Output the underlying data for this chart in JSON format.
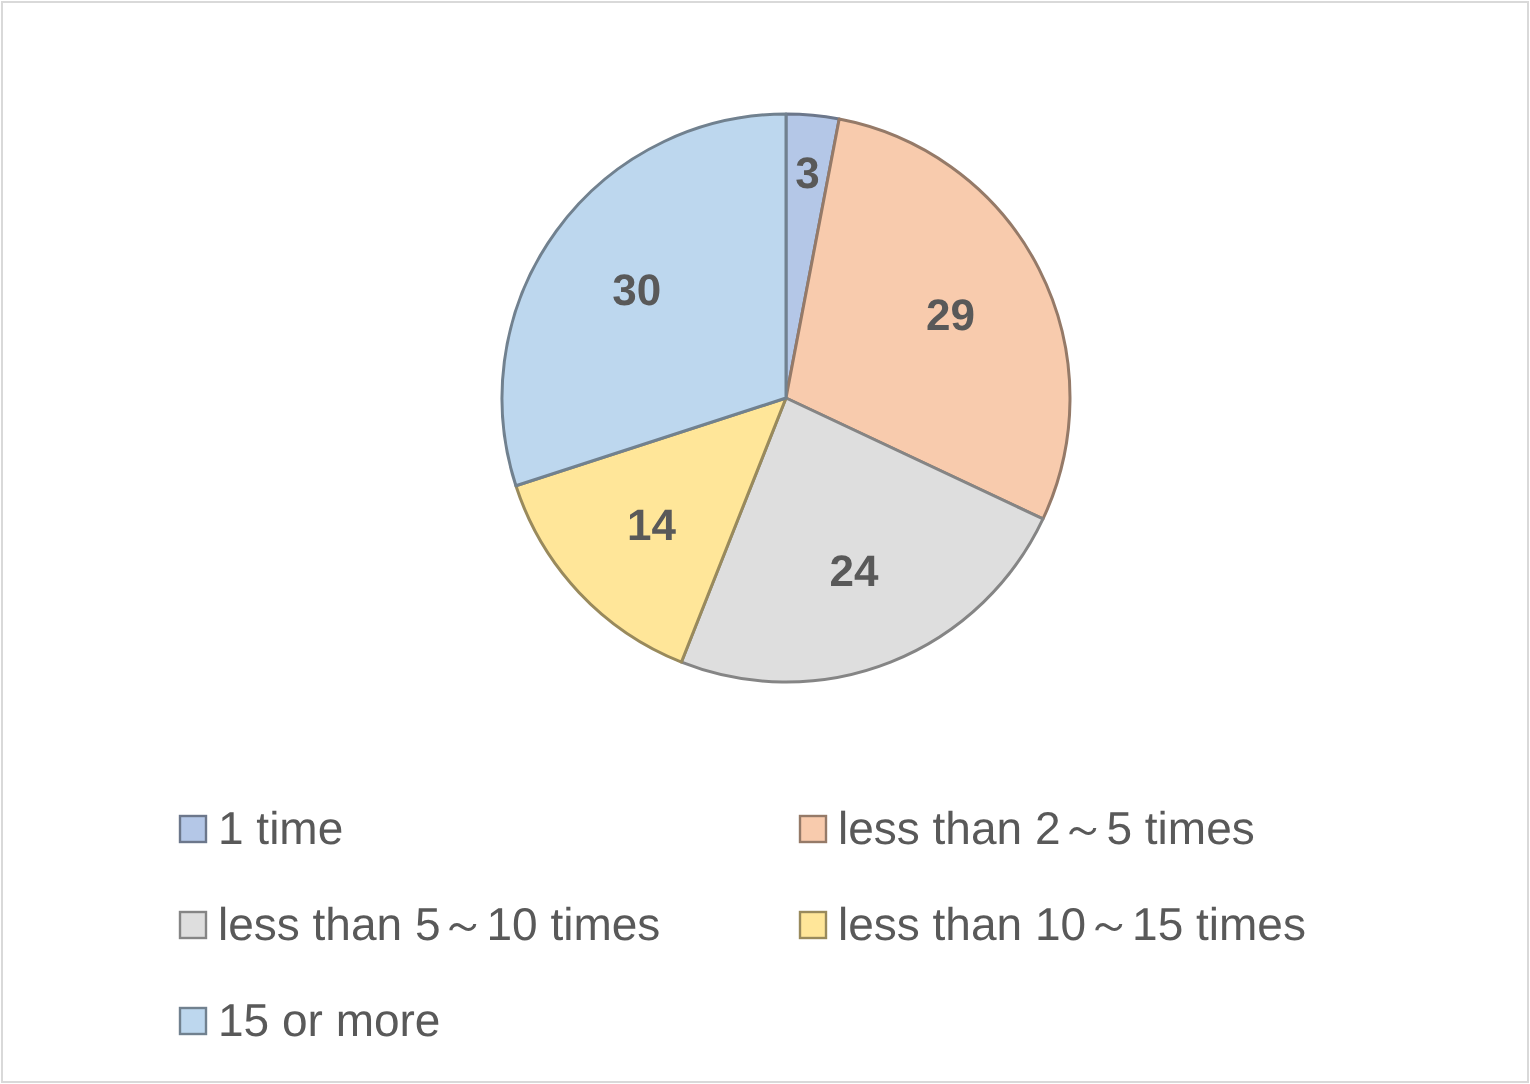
{
  "chart_data": {
    "type": "pie",
    "categories": [
      "1 time",
      "less than 2～5 times",
      "less than 5～10 times",
      "less than 10～15 times",
      "15 or more"
    ],
    "values": [
      3,
      29,
      24,
      14,
      30
    ],
    "colors": [
      "#b4c7e7",
      "#f8cbad",
      "#dedede",
      "#ffe699",
      "#bdd7ee"
    ],
    "data_labels": true,
    "legend": "bottom"
  }
}
